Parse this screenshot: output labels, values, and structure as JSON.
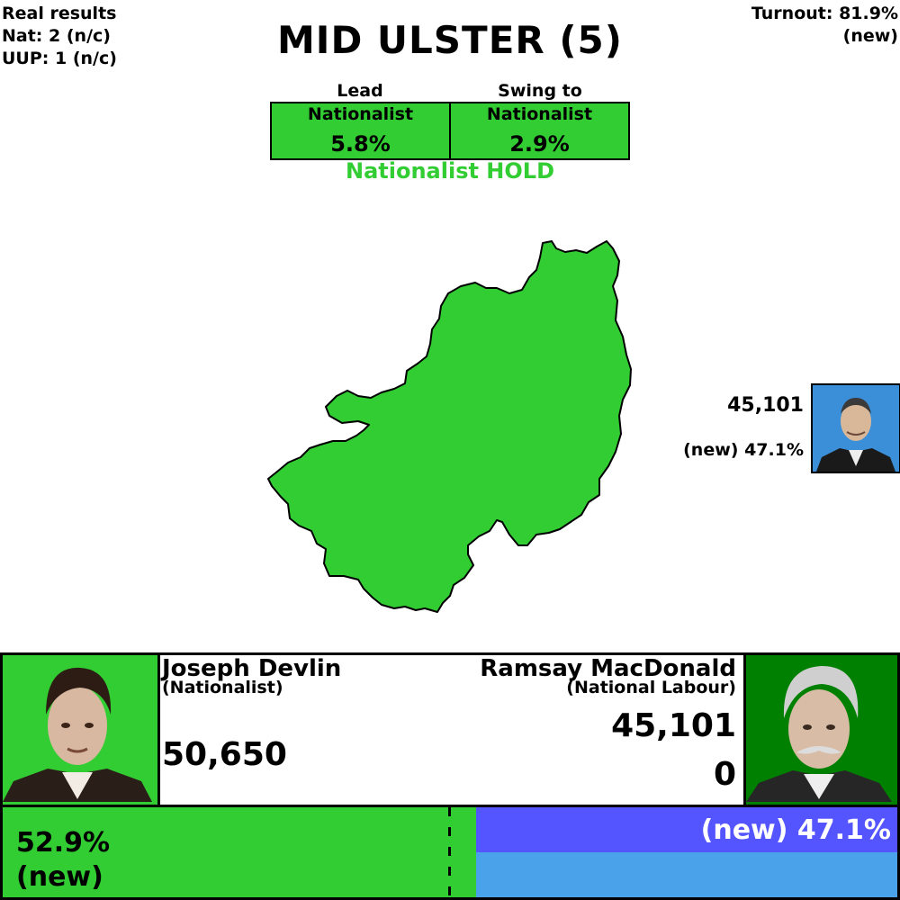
{
  "real_results": {
    "heading": "Real results",
    "line1": "Nat: 2 (n/c)",
    "line2": "UUP: 1 (n/c)"
  },
  "title": "MID ULSTER (5)",
  "turnout": {
    "line1": "Turnout: 81.9%",
    "line2": "(new)"
  },
  "lead": {
    "header": "Lead",
    "party": "Nationalist",
    "value": "5.8%"
  },
  "swing": {
    "header": "Swing to",
    "party": "Nationalist",
    "value": "2.9%"
  },
  "result": "Nationalist HOLD",
  "colors": {
    "nationalist": "#32cd32",
    "national_labour": "#008000",
    "bar_right_top": "#5555ff",
    "bar_right_bottom": "#4aa3ea"
  },
  "side_candidate": {
    "votes": "45,101",
    "pct": "(new) 47.1%",
    "photo": "portrait-icon"
  },
  "candidate1": {
    "name": "Joseph Devlin",
    "party": "(Nationalist)",
    "votes": "50,650",
    "share_text": "52.9%",
    "share_note": "(new)",
    "share": 52.9,
    "photo": "portrait-icon"
  },
  "candidate2": {
    "name": "Ramsay MacDonald",
    "party": "(National Labour)",
    "votes": "45,101",
    "change": "0",
    "share_text": "(new) 47.1%",
    "share": 47.1,
    "photo": "portrait-icon"
  }
}
